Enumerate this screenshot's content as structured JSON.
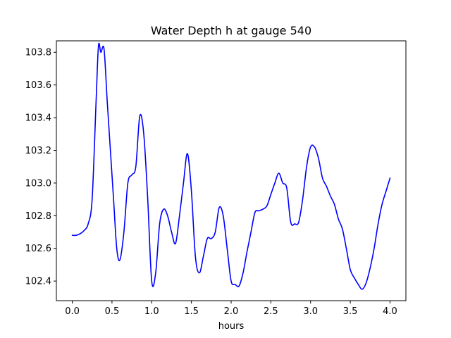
{
  "chart_data": {
    "type": "line",
    "title": "Water Depth h at gauge 540",
    "xlabel": "hours",
    "ylabel": "",
    "xlim": [
      -0.2,
      4.2
    ],
    "ylim": [
      102.28,
      103.87
    ],
    "grid": false,
    "x_ticks": [
      0.0,
      0.5,
      1.0,
      1.5,
      2.0,
      2.5,
      3.0,
      3.5,
      4.0
    ],
    "x_tick_labels": [
      "0.0",
      "0.5",
      "1.0",
      "1.5",
      "2.0",
      "2.5",
      "3.0",
      "3.5",
      "4.0"
    ],
    "y_ticks": [
      102.4,
      102.6,
      102.8,
      103.0,
      103.2,
      103.4,
      103.6,
      103.8
    ],
    "y_tick_labels": [
      "102.4",
      "102.6",
      "102.8",
      "103.0",
      "103.2",
      "103.4",
      "103.6",
      "103.8"
    ],
    "series": [
      {
        "color": "#0000ff",
        "x": [
          0.0,
          0.05,
          0.1,
          0.15,
          0.2,
          0.25,
          0.3,
          0.33,
          0.36,
          0.4,
          0.44,
          0.48,
          0.52,
          0.56,
          0.6,
          0.65,
          0.7,
          0.75,
          0.8,
          0.85,
          0.9,
          0.95,
          1.0,
          1.05,
          1.1,
          1.15,
          1.2,
          1.25,
          1.3,
          1.35,
          1.4,
          1.45,
          1.5,
          1.55,
          1.6,
          1.65,
          1.7,
          1.75,
          1.8,
          1.85,
          1.9,
          1.95,
          2.0,
          2.05,
          2.1,
          2.15,
          2.2,
          2.25,
          2.3,
          2.35,
          2.4,
          2.45,
          2.5,
          2.55,
          2.6,
          2.65,
          2.7,
          2.75,
          2.8,
          2.85,
          2.9,
          2.95,
          3.0,
          3.05,
          3.1,
          3.15,
          3.2,
          3.25,
          3.3,
          3.35,
          3.4,
          3.45,
          3.5,
          3.55,
          3.6,
          3.65,
          3.7,
          3.75,
          3.8,
          3.85,
          3.9,
          3.95,
          4.0
        ],
        "y": [
          102.68,
          102.68,
          102.69,
          102.71,
          102.75,
          102.9,
          103.5,
          103.84,
          103.8,
          103.82,
          103.5,
          103.2,
          102.9,
          102.6,
          102.53,
          102.7,
          103.0,
          103.05,
          103.1,
          103.41,
          103.3,
          102.9,
          102.4,
          102.45,
          102.75,
          102.84,
          102.8,
          102.7,
          102.63,
          102.8,
          103.0,
          103.18,
          102.95,
          102.55,
          102.45,
          102.55,
          102.66,
          102.66,
          102.7,
          102.85,
          102.8,
          102.6,
          102.4,
          102.38,
          102.37,
          102.45,
          102.58,
          102.7,
          102.82,
          102.83,
          102.84,
          102.86,
          102.93,
          103.0,
          103.06,
          103.0,
          102.97,
          102.76,
          102.75,
          102.76,
          102.9,
          103.1,
          103.22,
          103.22,
          103.15,
          103.03,
          102.98,
          102.92,
          102.87,
          102.78,
          102.72,
          102.6,
          102.47,
          102.42,
          102.38,
          102.35,
          102.39,
          102.48,
          102.6,
          102.75,
          102.87,
          102.95,
          103.03
        ]
      }
    ]
  }
}
